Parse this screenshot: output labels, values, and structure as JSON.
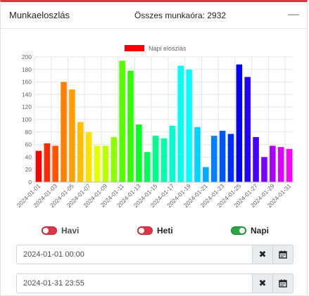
{
  "header": {
    "title": "Munkaeloszlás",
    "total_label": "Összes munkaóra: 2932",
    "collapse_icon": "minus-icon"
  },
  "chart_data": {
    "type": "bar",
    "legend": [
      "Napi eloszlás"
    ],
    "legend_placement": "top",
    "ylim": [
      0,
      200
    ],
    "yticks": [
      0,
      20,
      40,
      60,
      80,
      100,
      120,
      140,
      160,
      180,
      200
    ],
    "grid": true,
    "categories": [
      "2024-01-01",
      "2024-01-02",
      "2024-01-03",
      "2024-01-04",
      "2024-01-05",
      "2024-01-06",
      "2024-01-07",
      "2024-01-08",
      "2024-01-09",
      "2024-01-10",
      "2024-01-11",
      "2024-01-12",
      "2024-01-13",
      "2024-01-14",
      "2024-01-15",
      "2024-01-16",
      "2024-01-17",
      "2024-01-18",
      "2024-01-19",
      "2024-01-20",
      "2024-01-21",
      "2024-01-22",
      "2024-01-23",
      "2024-01-24",
      "2024-01-25",
      "2024-01-26",
      "2024-01-27",
      "2024-01-28",
      "2024-01-29",
      "2024-01-30",
      "2024-01-31"
    ],
    "xtick_labels": [
      "2024-01-01",
      "2024-01-03",
      "2024-01-05",
      "2024-01-07",
      "2024-01-09",
      "2024-01-11",
      "2024-01-13",
      "2024-01-15",
      "2024-01-17",
      "2024-01-19",
      "2024-01-21",
      "2024-01-23",
      "2024-01-25",
      "2024-01-27",
      "2024-01-29",
      "2024-01-31"
    ],
    "series": [
      {
        "name": "Napi eloszlás",
        "values": [
          50,
          62,
          58,
          160,
          148,
          96,
          80,
          58,
          58,
          72,
          194,
          178,
          92,
          48,
          74,
          70,
          90,
          186,
          180,
          88,
          24,
          74,
          82,
          77,
          188,
          168,
          72,
          40,
          58,
          56,
          53
        ],
        "colors": [
          "#ff0000",
          "#ff2a00",
          "#ff5500",
          "#ff8000",
          "#ffa000",
          "#ffc000",
          "#ffe000",
          "#e6ff00",
          "#bbff00",
          "#8cff00",
          "#55ff00",
          "#2bff00",
          "#00ff22",
          "#00ff55",
          "#00ff88",
          "#00ffaa",
          "#00ffd0",
          "#00fff0",
          "#00ffff",
          "#00d4ff",
          "#00aaff",
          "#0080ff",
          "#0055ff",
          "#002bff",
          "#0000ff",
          "#2200ff",
          "#4400ff",
          "#7700ff",
          "#aa00ff",
          "#dd00ff",
          "#ff00ff"
        ]
      }
    ],
    "legend_color": "#ff0000"
  },
  "toggles": [
    {
      "label": "Havi",
      "state": "off"
    },
    {
      "label": "Heti",
      "state": "off"
    },
    {
      "label": "Napi",
      "state": "on"
    }
  ],
  "date_from": {
    "value": "2024-01-01 00:00",
    "clear_icon": "clear-icon",
    "calendar_icon": "calendar-icon"
  },
  "date_to": {
    "value": "2024-01-31 23:55",
    "clear_icon": "clear-icon",
    "calendar_icon": "calendar-icon"
  }
}
